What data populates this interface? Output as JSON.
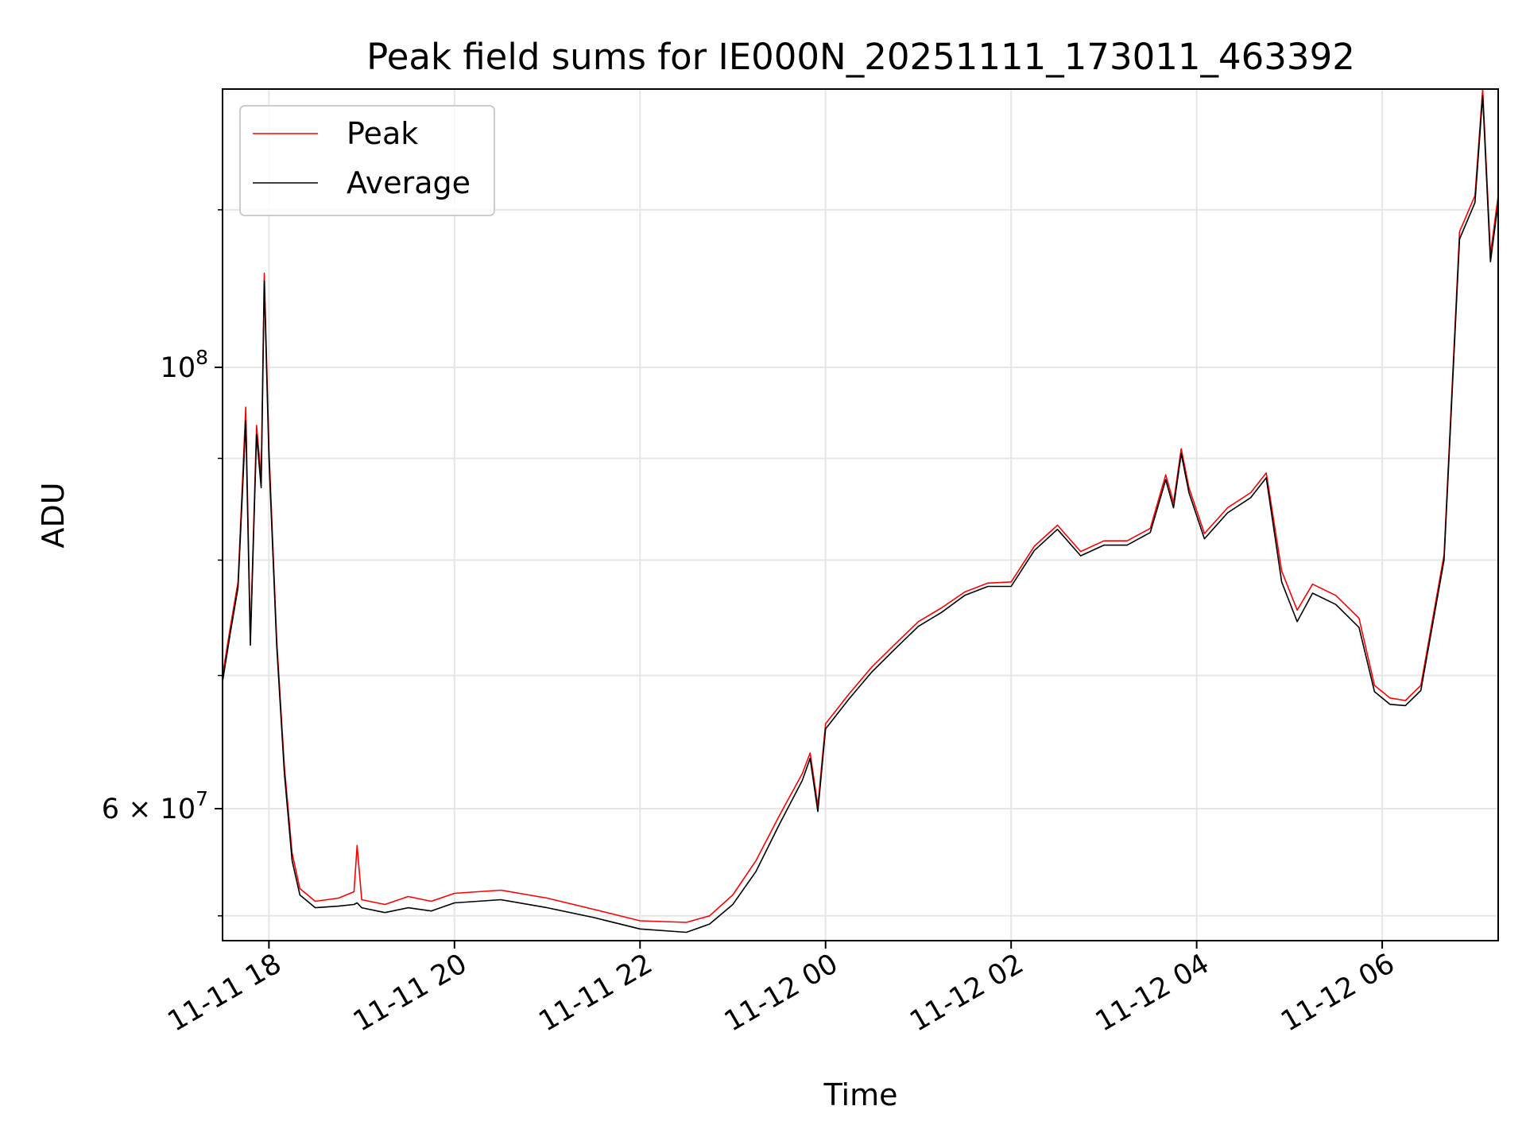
{
  "chart_data": {
    "type": "line",
    "title": "Peak field sums for IE000N_20251111_173011_463392",
    "xlabel": "Time",
    "ylabel": "ADU",
    "yscale": "log",
    "xlim": [
      "2025-11-11 17:30",
      "2025-11-12 07:15"
    ],
    "ylim": [
      51500000,
      138000000
    ],
    "grid": true,
    "legend_position": "top-left",
    "x_ticks": [
      {
        "value": "2025-11-11 18:00",
        "label": "11-11 18"
      },
      {
        "value": "2025-11-11 20:00",
        "label": "11-11 20"
      },
      {
        "value": "2025-11-11 22:00",
        "label": "11-11 22"
      },
      {
        "value": "2025-11-12 00:00",
        "label": "11-12 00"
      },
      {
        "value": "2025-11-12 02:00",
        "label": "11-12 02"
      },
      {
        "value": "2025-11-12 04:00",
        "label": "11-12 04"
      },
      {
        "value": "2025-11-12 06:00",
        "label": "11-12 06"
      }
    ],
    "y_ticks": [
      {
        "value": 60000000,
        "mant": "6 × 10",
        "exp": "7"
      },
      {
        "value": 100000000,
        "mant": "10",
        "exp": "8"
      }
    ],
    "y_minor_ticks": [
      53000000,
      70000000,
      80000000,
      90000000,
      120000000
    ],
    "series": [
      {
        "name": "Peak",
        "color": "#ff0000",
        "points": [
          [
            "2025-11-11 17:30",
            70000000
          ],
          [
            "2025-11-11 17:35",
            74000000
          ],
          [
            "2025-11-11 17:40",
            78000000
          ],
          [
            "2025-11-11 17:45",
            95500000
          ],
          [
            "2025-11-11 17:48",
            73000000
          ],
          [
            "2025-11-11 17:52",
            93500000
          ],
          [
            "2025-11-11 17:55",
            88000000
          ],
          [
            "2025-11-11 17:57",
            111500000
          ],
          [
            "2025-11-11 18:00",
            91000000
          ],
          [
            "2025-11-11 18:05",
            73000000
          ],
          [
            "2025-11-11 18:10",
            63000000
          ],
          [
            "2025-11-11 18:15",
            57000000
          ],
          [
            "2025-11-11 18:20",
            54700000
          ],
          [
            "2025-11-11 18:30",
            53900000
          ],
          [
            "2025-11-11 18:45",
            54100000
          ],
          [
            "2025-11-11 18:55",
            54500000
          ],
          [
            "2025-11-11 18:57",
            57500000
          ],
          [
            "2025-11-11 19:00",
            54000000
          ],
          [
            "2025-11-11 19:15",
            53700000
          ],
          [
            "2025-11-11 19:30",
            54200000
          ],
          [
            "2025-11-11 19:45",
            53900000
          ],
          [
            "2025-11-11 20:00",
            54400000
          ],
          [
            "2025-11-11 20:30",
            54600000
          ],
          [
            "2025-11-11 21:00",
            54100000
          ],
          [
            "2025-11-11 21:30",
            53400000
          ],
          [
            "2025-11-11 22:00",
            52700000
          ],
          [
            "2025-11-11 22:30",
            52600000
          ],
          [
            "2025-11-11 22:45",
            53000000
          ],
          [
            "2025-11-11 23:00",
            54300000
          ],
          [
            "2025-11-11 23:15",
            56500000
          ],
          [
            "2025-11-11 23:30",
            59500000
          ],
          [
            "2025-11-11 23:45",
            62500000
          ],
          [
            "2025-11-11 23:50",
            64000000
          ],
          [
            "2025-11-11 23:55",
            60200000
          ],
          [
            "2025-11-12 00:00",
            66200000
          ],
          [
            "2025-11-12 00:15",
            68500000
          ],
          [
            "2025-11-12 00:30",
            70700000
          ],
          [
            "2025-11-12 00:45",
            72600000
          ],
          [
            "2025-11-12 01:00",
            74500000
          ],
          [
            "2025-11-12 01:15",
            75700000
          ],
          [
            "2025-11-12 01:30",
            77100000
          ],
          [
            "2025-11-12 01:45",
            77900000
          ],
          [
            "2025-11-12 02:00",
            78000000
          ],
          [
            "2025-11-12 02:15",
            81300000
          ],
          [
            "2025-11-12 02:30",
            83300000
          ],
          [
            "2025-11-12 02:45",
            80800000
          ],
          [
            "2025-11-12 03:00",
            81800000
          ],
          [
            "2025-11-12 03:15",
            81800000
          ],
          [
            "2025-11-12 03:30",
            83000000
          ],
          [
            "2025-11-12 03:40",
            88300000
          ],
          [
            "2025-11-12 03:45",
            85500000
          ],
          [
            "2025-11-12 03:50",
            91000000
          ],
          [
            "2025-11-12 03:55",
            87000000
          ],
          [
            "2025-11-12 04:05",
            82500000
          ],
          [
            "2025-11-12 04:20",
            85000000
          ],
          [
            "2025-11-12 04:35",
            86500000
          ],
          [
            "2025-11-12 04:45",
            88500000
          ],
          [
            "2025-11-12 04:55",
            79000000
          ],
          [
            "2025-11-12 05:05",
            75500000
          ],
          [
            "2025-11-12 05:15",
            77800000
          ],
          [
            "2025-11-12 05:30",
            76800000
          ],
          [
            "2025-11-12 05:45",
            74800000
          ],
          [
            "2025-11-12 05:55",
            69200000
          ],
          [
            "2025-11-12 06:05",
            68200000
          ],
          [
            "2025-11-12 06:15",
            68000000
          ],
          [
            "2025-11-12 06:25",
            69200000
          ],
          [
            "2025-11-12 06:40",
            80500000
          ],
          [
            "2025-11-12 06:50",
            117000000
          ],
          [
            "2025-11-12 07:00",
            122000000
          ],
          [
            "2025-11-12 07:05",
            138000000
          ],
          [
            "2025-11-12 07:10",
            114000000
          ],
          [
            "2025-11-12 07:15",
            122000000
          ]
        ]
      },
      {
        "name": "Average",
        "color": "#000000",
        "points": [
          [
            "2025-11-11 17:30",
            69500000
          ],
          [
            "2025-11-11 17:35",
            73500000
          ],
          [
            "2025-11-11 17:40",
            77500000
          ],
          [
            "2025-11-11 17:45",
            94000000
          ],
          [
            "2025-11-11 17:48",
            72500000
          ],
          [
            "2025-11-11 17:52",
            92500000
          ],
          [
            "2025-11-11 17:55",
            87000000
          ],
          [
            "2025-11-11 17:57",
            110500000
          ],
          [
            "2025-11-11 18:00",
            90000000
          ],
          [
            "2025-11-11 18:05",
            72500000
          ],
          [
            "2025-11-11 18:10",
            62500000
          ],
          [
            "2025-11-11 18:15",
            56500000
          ],
          [
            "2025-11-11 18:20",
            54300000
          ],
          [
            "2025-11-11 18:30",
            53500000
          ],
          [
            "2025-11-11 18:45",
            53600000
          ],
          [
            "2025-11-11 18:55",
            53700000
          ],
          [
            "2025-11-11 18:57",
            53800000
          ],
          [
            "2025-11-11 19:00",
            53500000
          ],
          [
            "2025-11-11 19:15",
            53200000
          ],
          [
            "2025-11-11 19:30",
            53500000
          ],
          [
            "2025-11-11 19:45",
            53300000
          ],
          [
            "2025-11-11 20:00",
            53800000
          ],
          [
            "2025-11-11 20:30",
            54000000
          ],
          [
            "2025-11-11 21:00",
            53500000
          ],
          [
            "2025-11-11 21:30",
            52900000
          ],
          [
            "2025-11-11 22:00",
            52200000
          ],
          [
            "2025-11-11 22:30",
            52000000
          ],
          [
            "2025-11-11 22:45",
            52500000
          ],
          [
            "2025-11-11 23:00",
            53700000
          ],
          [
            "2025-11-11 23:15",
            55800000
          ],
          [
            "2025-11-11 23:30",
            58900000
          ],
          [
            "2025-11-11 23:45",
            62000000
          ],
          [
            "2025-11-11 23:50",
            63600000
          ],
          [
            "2025-11-11 23:55",
            59800000
          ],
          [
            "2025-11-12 00:00",
            65800000
          ],
          [
            "2025-11-12 00:15",
            68100000
          ],
          [
            "2025-11-12 00:30",
            70300000
          ],
          [
            "2025-11-12 00:45",
            72200000
          ],
          [
            "2025-11-12 01:00",
            74100000
          ],
          [
            "2025-11-12 01:15",
            75300000
          ],
          [
            "2025-11-12 01:30",
            76800000
          ],
          [
            "2025-11-12 01:45",
            77600000
          ],
          [
            "2025-11-12 02:00",
            77600000
          ],
          [
            "2025-11-12 02:15",
            80900000
          ],
          [
            "2025-11-12 02:30",
            82900000
          ],
          [
            "2025-11-12 02:45",
            80400000
          ],
          [
            "2025-11-12 03:00",
            81400000
          ],
          [
            "2025-11-12 03:15",
            81400000
          ],
          [
            "2025-11-12 03:30",
            82600000
          ],
          [
            "2025-11-12 03:40",
            87800000
          ],
          [
            "2025-11-12 03:45",
            85000000
          ],
          [
            "2025-11-12 03:50",
            90500000
          ],
          [
            "2025-11-12 03:55",
            86500000
          ],
          [
            "2025-11-12 04:05",
            82000000
          ],
          [
            "2025-11-12 04:20",
            84500000
          ],
          [
            "2025-11-12 04:35",
            86000000
          ],
          [
            "2025-11-12 04:45",
            88000000
          ],
          [
            "2025-11-12 04:55",
            78000000
          ],
          [
            "2025-11-12 05:05",
            74500000
          ],
          [
            "2025-11-12 05:15",
            77000000
          ],
          [
            "2025-11-12 05:30",
            76000000
          ],
          [
            "2025-11-12 05:45",
            74000000
          ],
          [
            "2025-11-12 05:55",
            68700000
          ],
          [
            "2025-11-12 06:05",
            67700000
          ],
          [
            "2025-11-12 06:15",
            67600000
          ],
          [
            "2025-11-12 06:25",
            68800000
          ],
          [
            "2025-11-12 06:40",
            80000000
          ],
          [
            "2025-11-12 06:50",
            116000000
          ],
          [
            "2025-11-12 07:00",
            121000000
          ],
          [
            "2025-11-12 07:05",
            137000000
          ],
          [
            "2025-11-12 07:10",
            113000000
          ],
          [
            "2025-11-12 07:15",
            121000000
          ]
        ]
      }
    ]
  }
}
